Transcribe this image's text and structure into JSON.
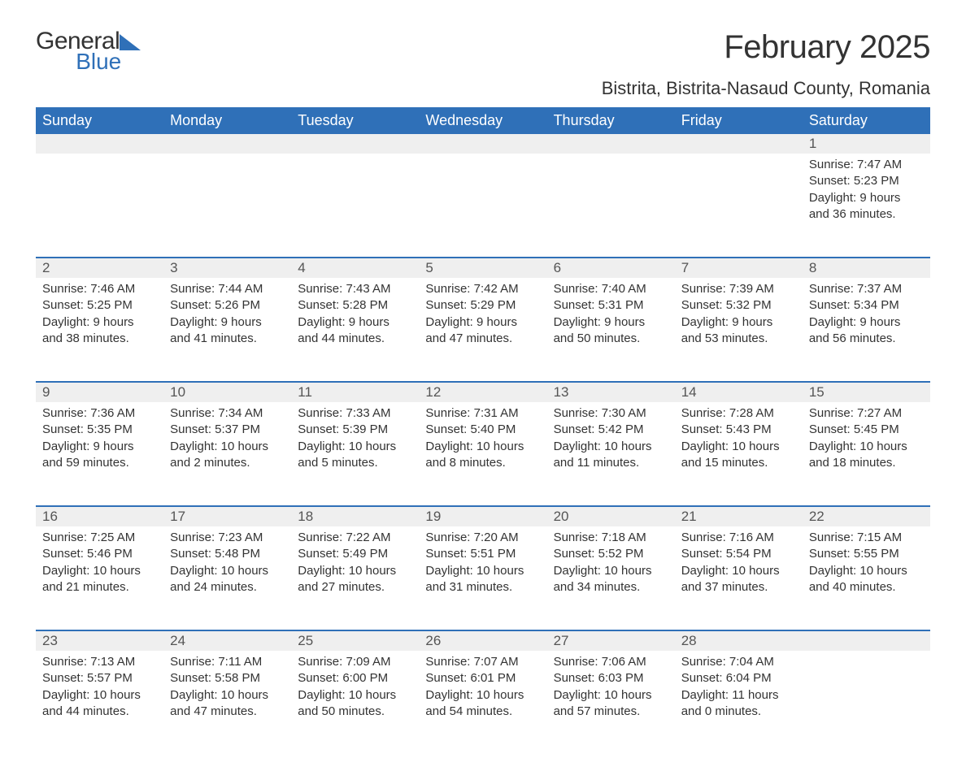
{
  "logo": {
    "line1": "General",
    "line2": "Blue",
    "triangle_color": "#2f70b8"
  },
  "title": "February 2025",
  "location": "Bistrita, Bistrita-Nasaud County, Romania",
  "colors": {
    "header_bg": "#2f70b8",
    "header_text": "#ffffff",
    "daynum_bg": "#efefef",
    "row_border": "#2f70b8",
    "text": "#333333",
    "logo_accent": "#2f70b8"
  },
  "day_headers": [
    "Sunday",
    "Monday",
    "Tuesday",
    "Wednesday",
    "Thursday",
    "Friday",
    "Saturday"
  ],
  "weeks": [
    [
      null,
      null,
      null,
      null,
      null,
      null,
      {
        "n": "1",
        "sunrise": "Sunrise: 7:47 AM",
        "sunset": "Sunset: 5:23 PM",
        "day1": "Daylight: 9 hours",
        "day2": "and 36 minutes."
      }
    ],
    [
      {
        "n": "2",
        "sunrise": "Sunrise: 7:46 AM",
        "sunset": "Sunset: 5:25 PM",
        "day1": "Daylight: 9 hours",
        "day2": "and 38 minutes."
      },
      {
        "n": "3",
        "sunrise": "Sunrise: 7:44 AM",
        "sunset": "Sunset: 5:26 PM",
        "day1": "Daylight: 9 hours",
        "day2": "and 41 minutes."
      },
      {
        "n": "4",
        "sunrise": "Sunrise: 7:43 AM",
        "sunset": "Sunset: 5:28 PM",
        "day1": "Daylight: 9 hours",
        "day2": "and 44 minutes."
      },
      {
        "n": "5",
        "sunrise": "Sunrise: 7:42 AM",
        "sunset": "Sunset: 5:29 PM",
        "day1": "Daylight: 9 hours",
        "day2": "and 47 minutes."
      },
      {
        "n": "6",
        "sunrise": "Sunrise: 7:40 AM",
        "sunset": "Sunset: 5:31 PM",
        "day1": "Daylight: 9 hours",
        "day2": "and 50 minutes."
      },
      {
        "n": "7",
        "sunrise": "Sunrise: 7:39 AM",
        "sunset": "Sunset: 5:32 PM",
        "day1": "Daylight: 9 hours",
        "day2": "and 53 minutes."
      },
      {
        "n": "8",
        "sunrise": "Sunrise: 7:37 AM",
        "sunset": "Sunset: 5:34 PM",
        "day1": "Daylight: 9 hours",
        "day2": "and 56 minutes."
      }
    ],
    [
      {
        "n": "9",
        "sunrise": "Sunrise: 7:36 AM",
        "sunset": "Sunset: 5:35 PM",
        "day1": "Daylight: 9 hours",
        "day2": "and 59 minutes."
      },
      {
        "n": "10",
        "sunrise": "Sunrise: 7:34 AM",
        "sunset": "Sunset: 5:37 PM",
        "day1": "Daylight: 10 hours",
        "day2": "and 2 minutes."
      },
      {
        "n": "11",
        "sunrise": "Sunrise: 7:33 AM",
        "sunset": "Sunset: 5:39 PM",
        "day1": "Daylight: 10 hours",
        "day2": "and 5 minutes."
      },
      {
        "n": "12",
        "sunrise": "Sunrise: 7:31 AM",
        "sunset": "Sunset: 5:40 PM",
        "day1": "Daylight: 10 hours",
        "day2": "and 8 minutes."
      },
      {
        "n": "13",
        "sunrise": "Sunrise: 7:30 AM",
        "sunset": "Sunset: 5:42 PM",
        "day1": "Daylight: 10 hours",
        "day2": "and 11 minutes."
      },
      {
        "n": "14",
        "sunrise": "Sunrise: 7:28 AM",
        "sunset": "Sunset: 5:43 PM",
        "day1": "Daylight: 10 hours",
        "day2": "and 15 minutes."
      },
      {
        "n": "15",
        "sunrise": "Sunrise: 7:27 AM",
        "sunset": "Sunset: 5:45 PM",
        "day1": "Daylight: 10 hours",
        "day2": "and 18 minutes."
      }
    ],
    [
      {
        "n": "16",
        "sunrise": "Sunrise: 7:25 AM",
        "sunset": "Sunset: 5:46 PM",
        "day1": "Daylight: 10 hours",
        "day2": "and 21 minutes."
      },
      {
        "n": "17",
        "sunrise": "Sunrise: 7:23 AM",
        "sunset": "Sunset: 5:48 PM",
        "day1": "Daylight: 10 hours",
        "day2": "and 24 minutes."
      },
      {
        "n": "18",
        "sunrise": "Sunrise: 7:22 AM",
        "sunset": "Sunset: 5:49 PM",
        "day1": "Daylight: 10 hours",
        "day2": "and 27 minutes."
      },
      {
        "n": "19",
        "sunrise": "Sunrise: 7:20 AM",
        "sunset": "Sunset: 5:51 PM",
        "day1": "Daylight: 10 hours",
        "day2": "and 31 minutes."
      },
      {
        "n": "20",
        "sunrise": "Sunrise: 7:18 AM",
        "sunset": "Sunset: 5:52 PM",
        "day1": "Daylight: 10 hours",
        "day2": "and 34 minutes."
      },
      {
        "n": "21",
        "sunrise": "Sunrise: 7:16 AM",
        "sunset": "Sunset: 5:54 PM",
        "day1": "Daylight: 10 hours",
        "day2": "and 37 minutes."
      },
      {
        "n": "22",
        "sunrise": "Sunrise: 7:15 AM",
        "sunset": "Sunset: 5:55 PM",
        "day1": "Daylight: 10 hours",
        "day2": "and 40 minutes."
      }
    ],
    [
      {
        "n": "23",
        "sunrise": "Sunrise: 7:13 AM",
        "sunset": "Sunset: 5:57 PM",
        "day1": "Daylight: 10 hours",
        "day2": "and 44 minutes."
      },
      {
        "n": "24",
        "sunrise": "Sunrise: 7:11 AM",
        "sunset": "Sunset: 5:58 PM",
        "day1": "Daylight: 10 hours",
        "day2": "and 47 minutes."
      },
      {
        "n": "25",
        "sunrise": "Sunrise: 7:09 AM",
        "sunset": "Sunset: 6:00 PM",
        "day1": "Daylight: 10 hours",
        "day2": "and 50 minutes."
      },
      {
        "n": "26",
        "sunrise": "Sunrise: 7:07 AM",
        "sunset": "Sunset: 6:01 PM",
        "day1": "Daylight: 10 hours",
        "day2": "and 54 minutes."
      },
      {
        "n": "27",
        "sunrise": "Sunrise: 7:06 AM",
        "sunset": "Sunset: 6:03 PM",
        "day1": "Daylight: 10 hours",
        "day2": "and 57 minutes."
      },
      {
        "n": "28",
        "sunrise": "Sunrise: 7:04 AM",
        "sunset": "Sunset: 6:04 PM",
        "day1": "Daylight: 11 hours",
        "day2": "and 0 minutes."
      },
      null
    ]
  ]
}
